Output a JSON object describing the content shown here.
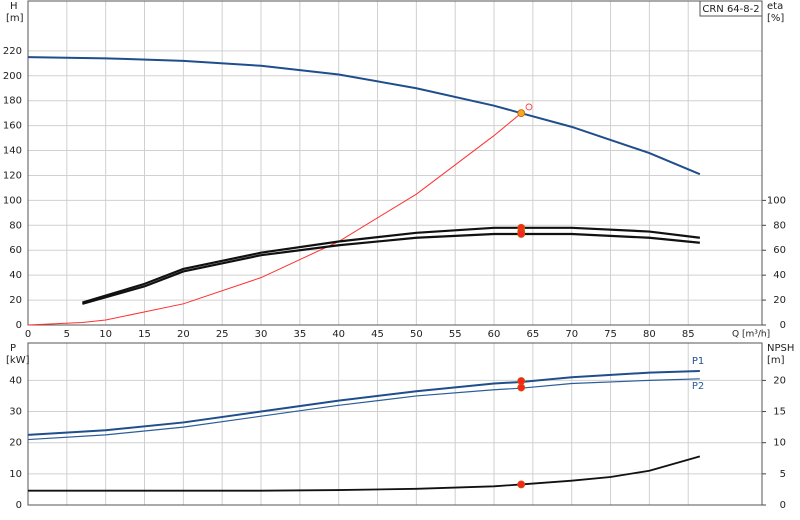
{
  "chart_data": [
    {
      "type": "line",
      "title": "CRN 64-8-2",
      "y_label": "H",
      "y_unit": "[m]",
      "y2_label": "eta",
      "y2_unit": "[%]",
      "x_label": "Q [m³/h]",
      "xlim": [
        0,
        94.5
      ],
      "xticks": [
        0,
        5,
        10,
        15,
        20,
        25,
        30,
        35,
        40,
        45,
        50,
        55,
        60,
        65,
        70,
        75,
        80,
        85
      ],
      "show_xtick_labels": true,
      "ylim": [
        0,
        260
      ],
      "yticks": [
        0,
        20,
        40,
        60,
        80,
        100,
        120,
        140,
        160,
        180,
        200,
        220
      ],
      "y2lim": [
        0,
        260
      ],
      "y2ticks": [
        0,
        20,
        40,
        60,
        80,
        100
      ],
      "grid": true,
      "series": [
        {
          "color": "#1f4e8c",
          "width": 2,
          "x": [
            0,
            10,
            20,
            30,
            40,
            50,
            60,
            63.5,
            70,
            80,
            86.5
          ],
          "values": [
            215,
            214,
            212,
            208,
            201,
            190,
            176,
            170,
            159,
            138,
            121
          ]
        },
        {
          "color": "#ff3030",
          "width": 1,
          "x": [
            0,
            7,
            10,
            20,
            30,
            40,
            50,
            60,
            63.5
          ],
          "values": [
            0,
            2,
            4,
            17,
            38,
            67,
            105,
            152,
            170
          ]
        },
        {
          "color": "#111111",
          "width": 2.2,
          "axis": "y2",
          "x": [
            7,
            15,
            20,
            30,
            40,
            50,
            60,
            63.5,
            70,
            80,
            86.5
          ],
          "values": [
            18,
            33,
            45,
            58,
            67,
            74,
            78,
            78,
            78,
            75,
            70
          ]
        },
        {
          "color": "#111111",
          "width": 2.2,
          "axis": "y2",
          "x": [
            7,
            15,
            20,
            30,
            40,
            50,
            60,
            63.5,
            70,
            80,
            86.5
          ],
          "values": [
            17,
            31,
            43,
            56,
            64,
            70,
            73,
            73,
            73,
            70,
            66
          ]
        }
      ],
      "points": [
        {
          "x": 63.5,
          "y": 170,
          "color": "#f5a623"
        },
        {
          "x": 64.5,
          "y": 175,
          "color": "none"
        },
        {
          "x": 63.5,
          "y": 78,
          "color": "#ff2020",
          "axis": "y2"
        },
        {
          "x": 63.5,
          "y": 75,
          "color": "#ff2020",
          "axis": "y2"
        },
        {
          "x": 63.5,
          "y": 73,
          "color": "#ff2020",
          "axis": "y2"
        }
      ]
    },
    {
      "type": "line",
      "y_label": "P",
      "y_unit": "[kW]",
      "y2_label": "NPSH",
      "y2_unit": "[m]",
      "xlim": [
        0,
        94.5
      ],
      "xticks": [
        0,
        5,
        10,
        15,
        20,
        25,
        30,
        35,
        40,
        45,
        50,
        55,
        60,
        65,
        70,
        75,
        80,
        85
      ],
      "show_xtick_labels": false,
      "ylim": [
        0,
        52
      ],
      "yticks": [
        0,
        10,
        20,
        30,
        40
      ],
      "y2lim": [
        0,
        26
      ],
      "y2ticks": [
        0,
        5,
        10,
        15,
        20
      ],
      "grid": true,
      "series": [
        {
          "name": "P1",
          "color": "#1f4e8c",
          "width": 2,
          "x": [
            0,
            10,
            20,
            30,
            40,
            50,
            60,
            63.5,
            70,
            80,
            86.5
          ],
          "values": [
            22.5,
            24,
            26.5,
            30,
            33.5,
            36.5,
            39,
            39.5,
            41,
            42.5,
            43
          ]
        },
        {
          "name": "P2",
          "color": "#2a5d9a",
          "width": 1.2,
          "x": [
            0,
            10,
            20,
            30,
            40,
            50,
            60,
            63.5,
            70,
            80,
            86.5
          ],
          "values": [
            21,
            22.5,
            25,
            28.5,
            32,
            35,
            37,
            37.5,
            39,
            40,
            40.5
          ]
        },
        {
          "color": "#111111",
          "width": 1.8,
          "axis": "y2",
          "x": [
            0,
            30,
            40,
            50,
            60,
            63.5,
            70,
            75,
            80,
            86.5
          ],
          "values": [
            2.3,
            2.3,
            2.4,
            2.6,
            3.0,
            3.3,
            3.9,
            4.5,
            5.5,
            7.8
          ]
        }
      ],
      "points": [
        {
          "x": 63.5,
          "y": 39.8,
          "color": "#ff2020"
        },
        {
          "x": 63.5,
          "y": 37.7,
          "color": "#ff2020"
        },
        {
          "x": 63.5,
          "y": 3.3,
          "color": "#ff2020",
          "axis": "y2"
        }
      ]
    }
  ]
}
